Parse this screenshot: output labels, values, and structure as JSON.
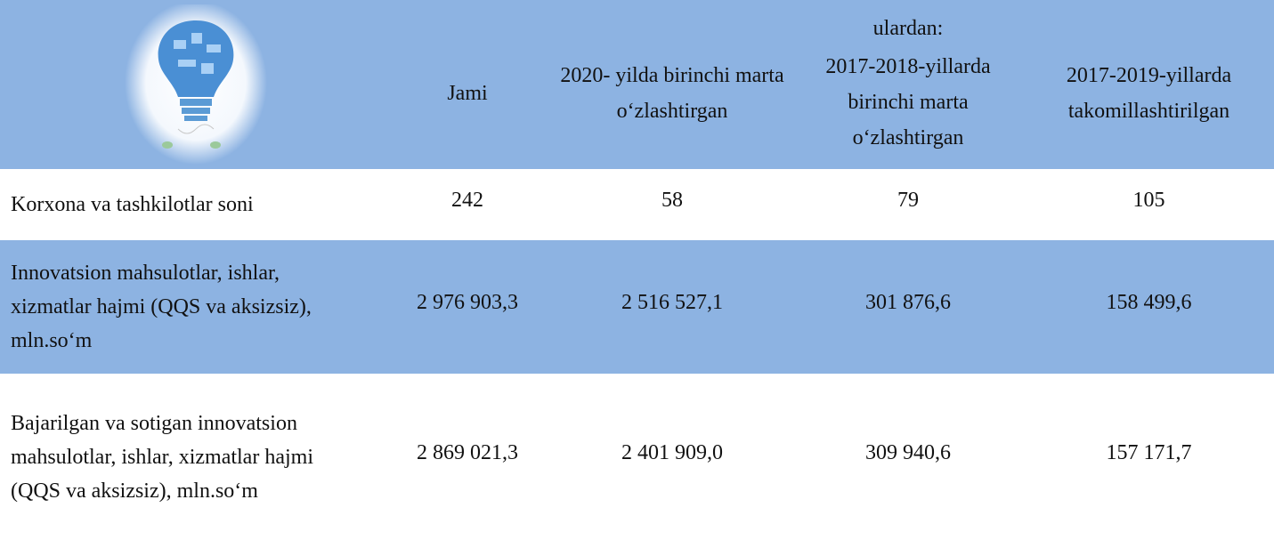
{
  "table": {
    "group_header": "ulardan:",
    "columns": [
      "Jami",
      "2020- yilda birinchi marta o‘zlashtirgan",
      "2017-2018-yillarda birinchi marta o‘zlashtirgan",
      "2017-2019-yillarda takomillashtirilgan"
    ],
    "rows": [
      [
        "Korxona va tashkilotlar soni",
        "242",
        "58",
        "79",
        "105"
      ],
      [
        "Innovatsion mahsulotlar, ishlar, xizmatlar hajmi  (QQS va aksizsiz), mln.so‘m",
        "2 976 903,3",
        "2 516 527,1",
        "301 876,6",
        "158 499,6"
      ],
      [
        "Bajarilgan va sotigan innovatsion mahsulotlar, ishlar, xizmatlar hajmi  (QQS va aksizsiz), mln.so‘m",
        "2 869 021,3",
        "2 401 909,0",
        "309 940,6",
        "157 171,7"
      ]
    ]
  }
}
